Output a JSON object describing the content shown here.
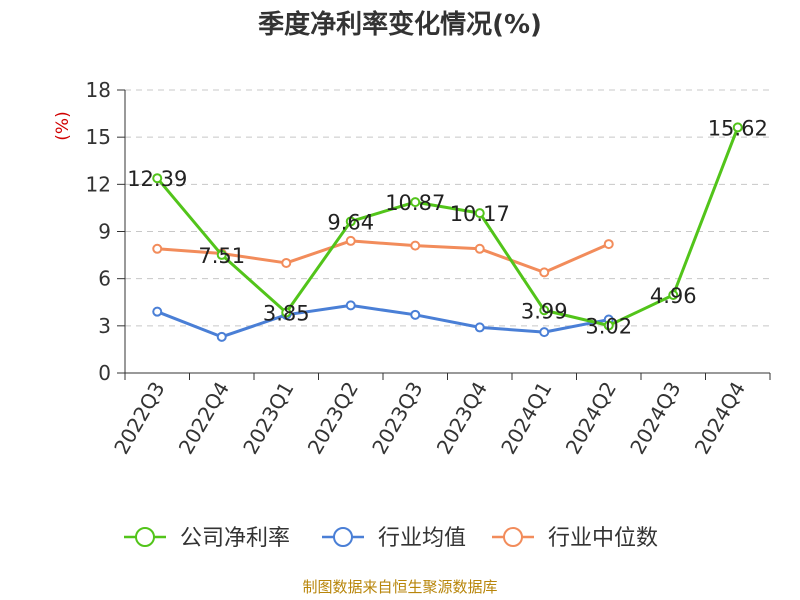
{
  "chart_data": {
    "type": "line",
    "title": "季度净利率变化情况(%)",
    "ylabel": "(%)",
    "categories": [
      "2022Q3",
      "2022Q4",
      "2023Q1",
      "2023Q2",
      "2023Q3",
      "2023Q4",
      "2024Q1",
      "2024Q2",
      "2024Q3",
      "2024Q4"
    ],
    "ylim": [
      0,
      18
    ],
    "yticks": [
      0,
      3,
      6,
      9,
      12,
      15,
      18
    ],
    "grid": true,
    "legend_position": "bottom",
    "series": [
      {
        "name": "公司净利率",
        "color": "#52c41a",
        "values": [
          12.39,
          7.51,
          3.85,
          9.64,
          10.87,
          10.17,
          3.99,
          3.02,
          4.96,
          15.62
        ],
        "labels": [
          "12.39",
          "7.51",
          "3.85",
          "9.64",
          "10.87",
          "10.17",
          "3.99",
          "3.02",
          "4.96",
          "15.62"
        ]
      },
      {
        "name": "行业均值",
        "color": "#4a7fd6",
        "values": [
          3.9,
          2.3,
          3.7,
          4.3,
          3.7,
          2.9,
          2.6,
          3.4,
          null,
          null
        ]
      },
      {
        "name": "行业中位数",
        "color": "#f28c5b",
        "values": [
          7.9,
          7.6,
          7.0,
          8.4,
          8.1,
          7.9,
          6.4,
          8.2,
          null,
          null
        ]
      }
    ]
  },
  "source": "制图数据来自恒生聚源数据库"
}
